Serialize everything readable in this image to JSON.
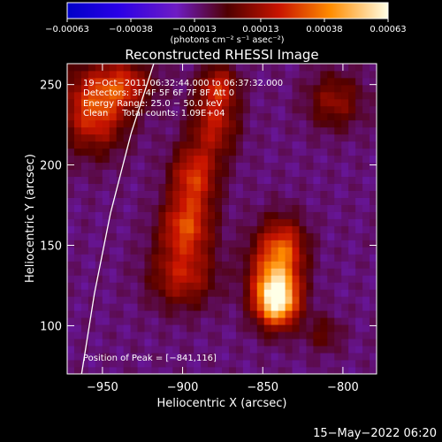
{
  "chart_data": {
    "type": "heatmap",
    "title": "Reconstructed RHESSI Image",
    "xlabel": "Heliocentric X (arcsec)",
    "ylabel": "Heliocentric Y (arcsec)",
    "xlim": [
      -972,
      -779
    ],
    "ylim": [
      70,
      263
    ],
    "x_ticks": [
      -950,
      -900,
      -850,
      -800
    ],
    "x_tick_labels": [
      "−950",
      "−900",
      "−850",
      "−800"
    ],
    "y_ticks": [
      100,
      150,
      200,
      250
    ],
    "y_tick_labels": [
      "100",
      "150",
      "200",
      "250"
    ],
    "colorbar": {
      "min": -0.00063,
      "max": 0.00063,
      "tick_values": [
        -0.00063,
        -0.00038,
        -0.00013,
        0.00013,
        0.00038,
        0.00063
      ],
      "tick_labels": [
        "−0.00063",
        "−0.00038",
        "−0.00013",
        "0.00013",
        "0.00038",
        "0.00063"
      ],
      "unit_label": "(photons cm⁻² s⁻¹ asec⁻²)"
    },
    "annotations": [
      "19−Oct−2011 06:32:44.000 to 06:37:32.000",
      "Detectors: 3F 4F 5F 6F 7F 8F Att 0",
      "Energy Range: 25.0 − 50.0 keV",
      "Clean     Total counts: 1.09E+04"
    ],
    "peak_label": "Position of Peak = [−841,116]",
    "peak": [
      -841,
      116
    ],
    "limb_curve": [
      [
        -963,
        70
      ],
      [
        -955,
        120
      ],
      [
        -945,
        170
      ],
      [
        -932,
        220
      ],
      [
        -918,
        263
      ]
    ],
    "emission_sources": [
      {
        "x": -841,
        "y": 116,
        "sx": 9,
        "sy": 11,
        "amp": 0.00065
      },
      {
        "x": -843,
        "y": 135,
        "sx": 11,
        "sy": 18,
        "amp": 0.00038
      },
      {
        "x": -835,
        "y": 150,
        "sx": 9,
        "sy": 12,
        "amp": 0.00022
      },
      {
        "x": -900,
        "y": 132,
        "sx": 14,
        "sy": 14,
        "amp": 0.0003
      },
      {
        "x": -898,
        "y": 162,
        "sx": 11,
        "sy": 12,
        "amp": 0.00036
      },
      {
        "x": -893,
        "y": 192,
        "sx": 10,
        "sy": 14,
        "amp": 0.00036
      },
      {
        "x": -880,
        "y": 228,
        "sx": 10,
        "sy": 16,
        "amp": 0.0003
      },
      {
        "x": -877,
        "y": 250,
        "sx": 8,
        "sy": 8,
        "amp": 0.00024
      },
      {
        "x": -955,
        "y": 235,
        "sx": 14,
        "sy": 18,
        "amp": 0.0004
      },
      {
        "x": -935,
        "y": 250,
        "sx": 12,
        "sy": 10,
        "amp": 0.00028
      },
      {
        "x": -805,
        "y": 240,
        "sx": 12,
        "sy": 12,
        "amp": 0.00022
      },
      {
        "x": -812,
        "y": 95,
        "sx": 8,
        "sy": 8,
        "amp": 0.00014
      }
    ]
  },
  "footer": {
    "date_stamp": "15−May−2022 06:20"
  }
}
